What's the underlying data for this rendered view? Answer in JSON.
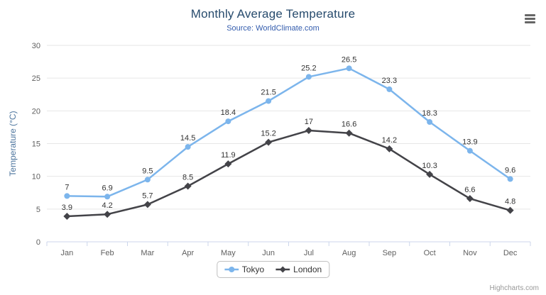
{
  "chart": {
    "credits": "Highcharts.com",
    "menu_icon": "hamburger-menu-icon"
  },
  "colors": {
    "title": "#274b6d",
    "subtitle": "#335cad",
    "axis_title": "#4d759e",
    "axis_labels": "#606060",
    "gridline": "#e6e6e6",
    "axis_line": "#ccd6eb",
    "data_label": "#333333",
    "legend_border": "#c0c0c0",
    "credits": "#999999",
    "menu_icon": "#666666"
  },
  "chart_data": {
    "type": "line",
    "title": "Monthly Average Temperature",
    "subtitle": "Source: WorldClimate.com",
    "categories": [
      "Jan",
      "Feb",
      "Mar",
      "Apr",
      "May",
      "Jun",
      "Jul",
      "Aug",
      "Sep",
      "Oct",
      "Nov",
      "Dec"
    ],
    "series": [
      {
        "name": "Tokyo",
        "color": "#7cb5ec",
        "marker": "circle",
        "values": [
          7,
          6.9,
          9.5,
          14.5,
          18.4,
          21.5,
          25.2,
          26.5,
          23.3,
          18.3,
          13.9,
          9.6
        ]
      },
      {
        "name": "London",
        "color": "#434348",
        "marker": "diamond",
        "values": [
          3.9,
          4.2,
          5.7,
          8.5,
          11.9,
          15.2,
          17,
          16.6,
          14.2,
          10.3,
          6.6,
          4.8
        ]
      }
    ],
    "xlabel": "",
    "ylabel": "Temperature (°C)",
    "ylim": [
      0,
      30
    ],
    "yticks": [
      0,
      5,
      10,
      15,
      20,
      25,
      30
    ],
    "grid": true,
    "data_labels": true,
    "legend_position": "bottom"
  }
}
